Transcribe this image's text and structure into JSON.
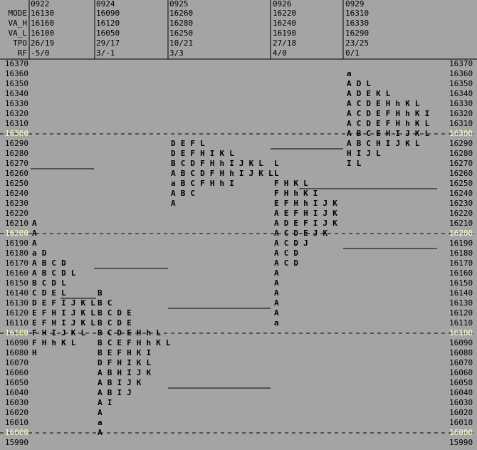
{
  "header": {
    "dates": [
      "0922",
      "0924",
      "0925",
      "0926",
      "0929"
    ],
    "rows": [
      {
        "label": "MODE",
        "values": [
          16130,
          16090,
          16260,
          16220,
          16310
        ]
      },
      {
        "label": "VA_H",
        "values": [
          16160,
          16120,
          16280,
          16240,
          16330
        ]
      },
      {
        "label": "VA_L",
        "values": [
          16100,
          16050,
          16250,
          16190,
          16290
        ]
      },
      {
        "label": "TPO",
        "values": [
          "26/19",
          "29/17",
          "10/21",
          "27/18",
          "23/25"
        ]
      },
      {
        "label": "RF",
        "values": [
          "-5/0",
          "3/-1",
          "3/3",
          "4/0",
          "0/1"
        ]
      }
    ]
  },
  "price_axis": {
    "labels": [
      16370,
      16360,
      16350,
      16340,
      16330,
      16320,
      16310,
      16300,
      16290,
      16280,
      16270,
      16260,
      16250,
      16240,
      16230,
      16220,
      16210,
      16200,
      16190,
      16180,
      16170,
      16160,
      16150,
      16140,
      16130,
      16120,
      16110,
      16100,
      16090,
      16080,
      16070,
      16060,
      16050,
      16040,
      16030,
      16020,
      16010,
      16000,
      15990
    ],
    "highlight": [
      16300,
      16200,
      16100,
      16000
    ]
  },
  "letter_colors": {
    "a": "#ff0000",
    "A": "#ff0000",
    "B": "#ff6a00",
    "C": "#ff9000",
    "D": "#ffb400",
    "E": "#ffc8a0",
    "F": "#ffff00",
    "H": "#7cff7c",
    "h": "#a0ffa0",
    "I": "#00c000",
    "J": "#60c8ff",
    "K": "#3c6cff",
    "L": "#0000e0"
  },
  "profiles": [
    {
      "rows": [
        {
          "price": 16210,
          "tpo": [
            "A"
          ]
        },
        {
          "price": 16200,
          "tpo": [
            "A"
          ]
        },
        {
          "price": 16190,
          "tpo": [
            "A"
          ]
        },
        {
          "price": 16180,
          "tpo": [
            "a",
            "D"
          ]
        },
        {
          "price": 16170,
          "tpo": [
            "A",
            "B",
            "C",
            "D"
          ]
        },
        {
          "price": 16160,
          "tpo": [
            "A",
            "B",
            "C",
            "D",
            "L"
          ]
        },
        {
          "price": 16150,
          "tpo": [
            "B",
            "C",
            "D",
            "L"
          ]
        },
        {
          "price": 16140,
          "tpo": [
            "C",
            "D",
            "E",
            "L"
          ]
        },
        {
          "price": 16130,
          "tpo": [
            "D",
            "E",
            "F",
            "I",
            "J",
            "K",
            "L"
          ]
        },
        {
          "price": 16120,
          "tpo": [
            "E",
            "F",
            "H",
            "I",
            "J",
            "K",
            "L"
          ]
        },
        {
          "price": 16110,
          "tpo": [
            "E",
            "F",
            "H",
            "I",
            "J",
            "K",
            "L"
          ]
        },
        {
          "price": 16100,
          "tpo": [
            "F",
            "H",
            "I",
            "J",
            "K",
            "L"
          ]
        },
        {
          "price": 16090,
          "tpo": [
            "F",
            "H",
            "h",
            "K",
            "L"
          ]
        },
        {
          "price": 16080,
          "tpo": [
            "H"
          ]
        }
      ]
    },
    {
      "rows": [
        {
          "price": 16140,
          "tpo": [
            "B"
          ]
        },
        {
          "price": 16130,
          "tpo": [
            "B",
            "C"
          ]
        },
        {
          "price": 16120,
          "tpo": [
            "B",
            "C",
            "D",
            "E"
          ]
        },
        {
          "price": 16110,
          "tpo": [
            "B",
            "C",
            "D",
            "E"
          ]
        },
        {
          "price": 16100,
          "tpo": [
            "B",
            "C",
            "D",
            "E",
            "H",
            "h",
            "L"
          ]
        },
        {
          "price": 16090,
          "tpo": [
            "B",
            "C",
            "E",
            "F",
            "H",
            "h",
            "K",
            "L"
          ]
        },
        {
          "price": 16080,
          "tpo": [
            "B",
            "E",
            "F",
            "H",
            "K",
            "I"
          ]
        },
        {
          "price": 16070,
          "tpo": [
            "D",
            "F",
            "H",
            "I",
            "K",
            "L"
          ]
        },
        {
          "price": 16060,
          "tpo": [
            "A",
            "B",
            "H",
            "I",
            "J",
            "K"
          ]
        },
        {
          "price": 16050,
          "tpo": [
            "A",
            "B",
            "I",
            "J",
            "K"
          ]
        },
        {
          "price": 16040,
          "tpo": [
            "A",
            "B",
            "I",
            "J"
          ]
        },
        {
          "price": 16030,
          "tpo": [
            "A",
            "I"
          ]
        },
        {
          "price": 16020,
          "tpo": [
            "A"
          ]
        },
        {
          "price": 16010,
          "tpo": [
            "a"
          ]
        },
        {
          "price": 16000,
          "tpo": [
            "A"
          ]
        }
      ]
    },
    {
      "rows": [
        {
          "price": 16290,
          "tpo": [
            "D",
            "E",
            "F",
            "L"
          ]
        },
        {
          "price": 16280,
          "tpo": [
            "D",
            "E",
            "F",
            "H",
            "I",
            "K",
            "L"
          ]
        },
        {
          "price": 16270,
          "tpo": [
            "B",
            "C",
            "D",
            "F",
            "H",
            "h",
            "I",
            "J",
            "K",
            "L"
          ]
        },
        {
          "price": 16260,
          "tpo": [
            "A",
            "B",
            "C",
            "D",
            "F",
            "H",
            "h",
            "I",
            "J",
            "K",
            "L"
          ]
        },
        {
          "price": 16250,
          "tpo": [
            "a",
            "B",
            "C",
            "F",
            "H",
            "h",
            "I"
          ]
        },
        {
          "price": 16240,
          "tpo": [
            "A",
            "B",
            "C"
          ]
        },
        {
          "price": 16230,
          "tpo": [
            "A"
          ]
        }
      ]
    },
    {
      "rows": [
        {
          "price": 16270,
          "tpo": [
            "L"
          ]
        },
        {
          "price": 16260,
          "tpo": [
            "L"
          ]
        },
        {
          "price": 16250,
          "tpo": [
            "F",
            "H",
            "K",
            "L"
          ]
        },
        {
          "price": 16240,
          "tpo": [
            "F",
            "H",
            "h",
            "K",
            "I"
          ]
        },
        {
          "price": 16230,
          "tpo": [
            "E",
            "F",
            "H",
            "h",
            "I",
            "J",
            "K"
          ]
        },
        {
          "price": 16220,
          "tpo": [
            "A",
            "E",
            "F",
            "H",
            "I",
            "J",
            "K"
          ]
        },
        {
          "price": 16210,
          "tpo": [
            "A",
            "D",
            "E",
            "F",
            "I",
            "J",
            "K"
          ]
        },
        {
          "price": 16200,
          "tpo": [
            "A",
            "C",
            "D",
            "E",
            "J",
            "K"
          ]
        },
        {
          "price": 16190,
          "tpo": [
            "A",
            "C",
            "D",
            "J"
          ]
        },
        {
          "price": 16180,
          "tpo": [
            "A",
            "C",
            "D"
          ]
        },
        {
          "price": 16170,
          "tpo": [
            "A",
            "C",
            "D"
          ]
        },
        {
          "price": 16160,
          "tpo": [
            "A"
          ]
        },
        {
          "price": 16150,
          "tpo": [
            "A"
          ]
        },
        {
          "price": 16140,
          "tpo": [
            "A"
          ]
        },
        {
          "price": 16130,
          "tpo": [
            "A"
          ]
        },
        {
          "price": 16120,
          "tpo": [
            "A"
          ]
        },
        {
          "price": 16110,
          "tpo": [
            "a"
          ]
        }
      ]
    },
    {
      "rows": [
        {
          "price": 16360,
          "tpo": [
            "a"
          ]
        },
        {
          "price": 16350,
          "tpo": [
            "A",
            "D",
            "L"
          ]
        },
        {
          "price": 16340,
          "tpo": [
            "A",
            "D",
            "E",
            "K",
            "L"
          ]
        },
        {
          "price": 16330,
          "tpo": [
            "A",
            "C",
            "D",
            "E",
            "H",
            "h",
            "K",
            "L"
          ]
        },
        {
          "price": 16320,
          "tpo": [
            "A",
            "C",
            "D",
            "E",
            "F",
            "H",
            "h",
            "K",
            "I"
          ]
        },
        {
          "price": 16310,
          "tpo": [
            "A",
            "C",
            "D",
            "E",
            "F",
            "H",
            "h",
            "K",
            "L"
          ]
        },
        {
          "price": 16300,
          "tpo": [
            "A",
            "B",
            "C",
            "E",
            "H",
            "I",
            "J",
            "K",
            "L"
          ]
        },
        {
          "price": 16290,
          "tpo": [
            "A",
            "B",
            "C",
            "H",
            "I",
            "J",
            "K",
            "L"
          ]
        },
        {
          "price": 16280,
          "tpo": [
            "H",
            "I",
            "J",
            "L"
          ]
        },
        {
          "price": 16270,
          "tpo": [
            "I",
            "L"
          ]
        }
      ]
    }
  ]
}
